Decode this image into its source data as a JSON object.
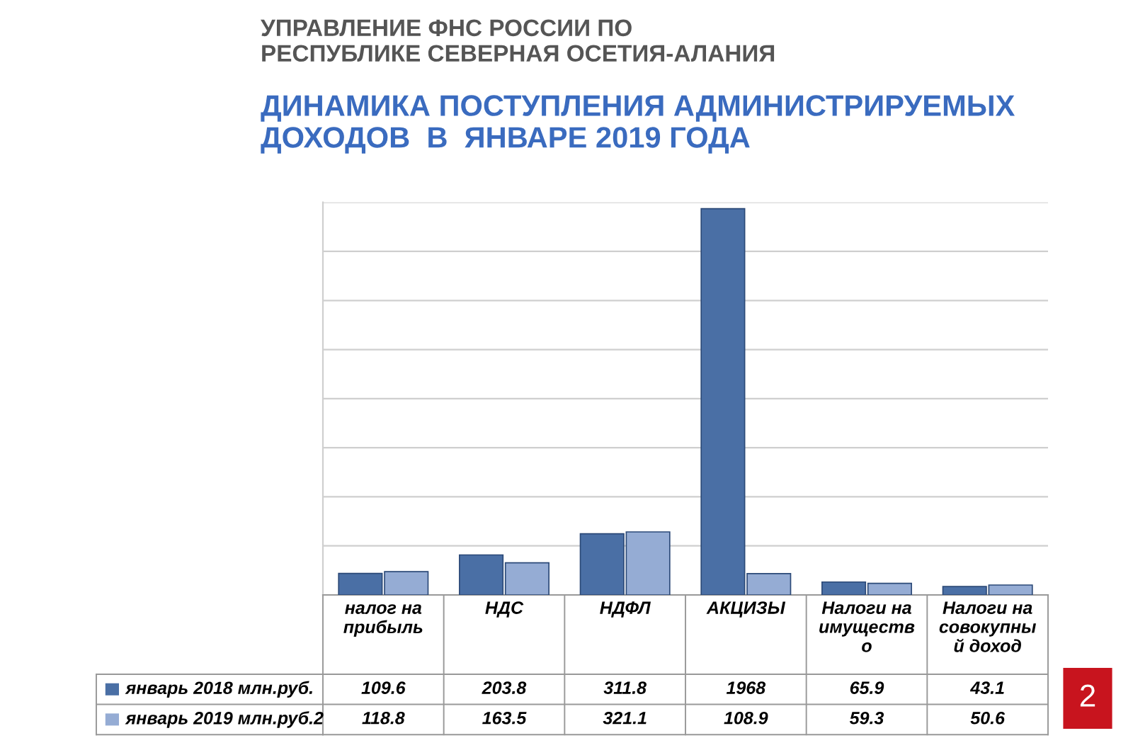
{
  "chart_data": {
    "type": "bar",
    "title": "УПРАВЛЕНИЕ ФНС РОССИИ ПО\nРЕСПУБЛИКЕ СЕВЕРНАЯ ОСЕТИЯ-АЛАНИЯ",
    "subtitle": "ДИНАМИКА ПОСТУПЛЕНИЯ АДМИНИСТРИРУЕМЫХ\nДОХОДОВ  В  ЯНВАРЕ 2019 ГОДА",
    "categories": [
      "налог на\nприбыль",
      "НДС",
      "НДФЛ",
      "АКЦИЗЫ",
      "Налоги на\nимуществ\nо",
      "Налоги на\nсовокупны\nй доход"
    ],
    "series": [
      {
        "name": "январь 2018 млн.руб.",
        "color": "#4a6fa5",
        "values": [
          109.6,
          203.8,
          311.8,
          1968,
          65.9,
          43.1
        ]
      },
      {
        "name": "январь 2019 млн.руб.2",
        "color": "#95acd4",
        "values": [
          118.8,
          163.5,
          321.1,
          108.9,
          59.3,
          50.6
        ]
      }
    ],
    "ylim": [
      0,
      2000
    ],
    "yticks": [
      {
        "value": 0,
        "label": null
      },
      {
        "value": 250,
        "label": null
      },
      {
        "value": 500,
        "label": null
      },
      {
        "value": 750,
        "label": null
      },
      {
        "value": 1000,
        "label": null
      },
      {
        "value": 1250,
        "label": null
      },
      {
        "value": 1500,
        "label": null
      },
      {
        "value": 1750,
        "label": null
      },
      {
        "value": 2000,
        "label": null
      }
    ],
    "grid": "y",
    "legend": "bottom",
    "data_labels": true,
    "annotations": [
      "2"
    ]
  }
}
